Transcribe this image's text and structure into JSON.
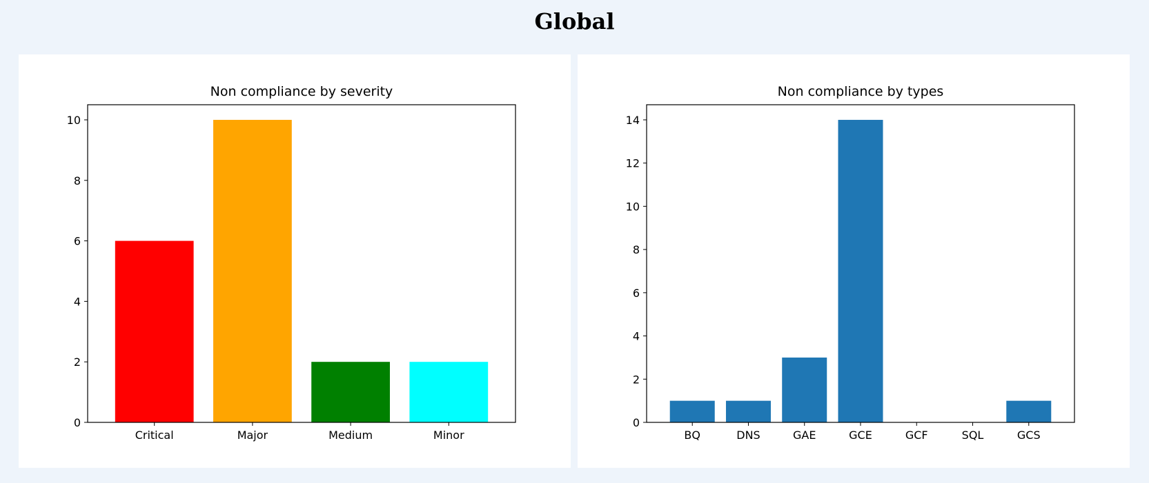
{
  "page": {
    "title": "Global"
  },
  "chart_data": [
    {
      "type": "bar",
      "title": "Non compliance by severity",
      "xlabel": "",
      "ylabel": "",
      "categories": [
        "Critical",
        "Major",
        "Medium",
        "Minor"
      ],
      "values": [
        6,
        10,
        2,
        2
      ],
      "colors": [
        "#ff0000",
        "#ffa500",
        "#008000",
        "#00ffff"
      ],
      "yticks": [
        0,
        2,
        4,
        6,
        8,
        10
      ],
      "ylim": [
        0,
        10.5
      ],
      "grid": false,
      "legend": "none"
    },
    {
      "type": "bar",
      "title": "Non compliance by types",
      "xlabel": "",
      "ylabel": "",
      "categories": [
        "BQ",
        "DNS",
        "GAE",
        "GCE",
        "GCF",
        "SQL",
        "GCS"
      ],
      "values": [
        1,
        1,
        3,
        14,
        0,
        0,
        1
      ],
      "colors": [
        "#1f77b4",
        "#1f77b4",
        "#1f77b4",
        "#1f77b4",
        "#1f77b4",
        "#1f77b4",
        "#1f77b4"
      ],
      "yticks": [
        0,
        2,
        4,
        6,
        8,
        10,
        12,
        14
      ],
      "ylim": [
        0,
        14.7
      ],
      "grid": false,
      "legend": "none"
    }
  ]
}
